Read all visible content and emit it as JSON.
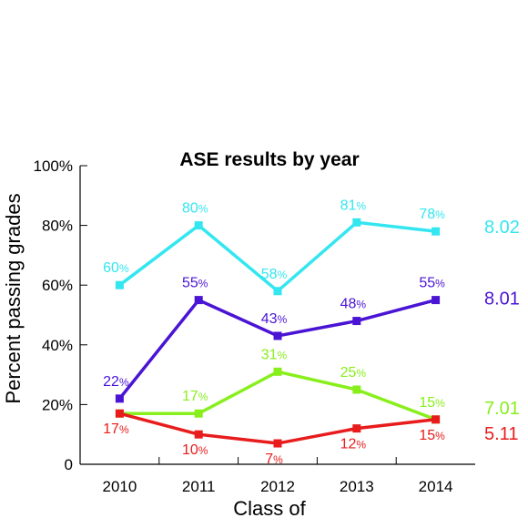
{
  "chart_data": {
    "type": "line",
    "title": "ASE results by year",
    "xlabel": "Class of",
    "ylabel": "Percent passing grades",
    "categories": [
      "2010",
      "2011",
      "2012",
      "2013",
      "2014"
    ],
    "ylim": [
      0,
      100
    ],
    "yticks": [
      "0",
      "20%",
      "40%",
      "60%",
      "80%",
      "100%"
    ],
    "grid": false,
    "series": [
      {
        "name": "8.02",
        "color": "#33e6f0",
        "values": [
          60,
          80,
          58,
          81,
          78
        ],
        "labels": [
          "60",
          "80",
          "58",
          "81",
          "78"
        ]
      },
      {
        "name": "8.01",
        "color": "#4a14d4",
        "values": [
          22,
          55,
          43,
          48,
          55
        ],
        "labels": [
          "22",
          "55",
          "43",
          "48",
          "55"
        ]
      },
      {
        "name": "7.01",
        "color": "#88ef1c",
        "values": [
          17,
          17,
          31,
          25,
          15
        ],
        "labels": [
          "",
          "17",
          "31",
          "25",
          "15"
        ]
      },
      {
        "name": "5.11",
        "color": "#e81c1c",
        "values": [
          17,
          10,
          7,
          12,
          15
        ],
        "labels": [
          "17",
          "10",
          "7",
          "12",
          "15"
        ]
      }
    ],
    "label_suffix": "%"
  }
}
